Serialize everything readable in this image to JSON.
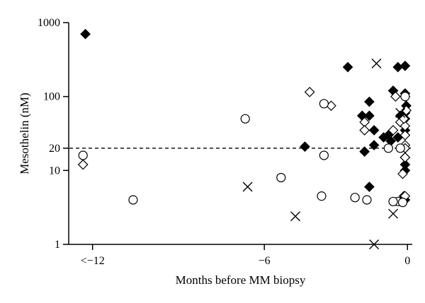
{
  "chart_data": {
    "type": "scatter",
    "title": "",
    "xlabel": "Months before MM biopsy",
    "ylabel": "Mesothelin (nM)",
    "x_scale": "linear",
    "y_scale": "log",
    "xlim": [
      -14.2,
      0.2
    ],
    "ylim": [
      1,
      1000
    ],
    "x_ticks": [
      {
        "value": -13.2,
        "label": "<−12"
      },
      {
        "value": -6,
        "label": "−6"
      },
      {
        "value": 0,
        "label": "0"
      }
    ],
    "y_ticks": [
      {
        "value": 1,
        "label": "1"
      },
      {
        "value": 10,
        "label": "10"
      },
      {
        "value": 20,
        "label": "20"
      },
      {
        "value": 100,
        "label": "100"
      },
      {
        "value": 1000,
        "label": "1000"
      }
    ],
    "reference_line": {
      "y": 20,
      "style": "dashed"
    },
    "grid": false,
    "legend": "none",
    "series": [
      {
        "marker": "filled-diamond",
        "points": [
          [
            -13.5,
            700
          ],
          [
            -2.5,
            250
          ],
          [
            -0.6,
            120
          ],
          [
            -0.4,
            250
          ],
          [
            -0.1,
            260
          ],
          [
            -0.1,
            110
          ],
          [
            -0.1,
            100
          ],
          [
            -0.05,
            75
          ],
          [
            -0.1,
            60
          ],
          [
            -0.1,
            50
          ],
          [
            -0.1,
            35
          ],
          [
            -0.1,
            20
          ],
          [
            -0.1,
            12
          ],
          [
            -0.1,
            10
          ],
          [
            -0.1,
            4
          ],
          [
            -1.6,
            85
          ],
          [
            -1.6,
            55
          ],
          [
            -1.9,
            55
          ],
          [
            -1.4,
            35
          ],
          [
            -1.0,
            28
          ],
          [
            -0.8,
            30
          ],
          [
            -0.7,
            25
          ],
          [
            -0.4,
            28
          ],
          [
            -1.4,
            22
          ],
          [
            -1.8,
            18
          ],
          [
            -0.3,
            55
          ],
          [
            -1.6,
            6
          ],
          [
            -4.3,
            21
          ],
          [
            -0.1,
            15
          ],
          [
            -0.15,
            4.5
          ]
        ]
      },
      {
        "marker": "open-diamond",
        "points": [
          [
            -13.6,
            12
          ],
          [
            -4.1,
            115
          ],
          [
            -3.2,
            75
          ],
          [
            -0.5,
            100
          ],
          [
            -0.3,
            45
          ],
          [
            -0.1,
            40
          ],
          [
            -0.1,
            30
          ],
          [
            -0.1,
            22
          ],
          [
            -0.1,
            20
          ],
          [
            -0.1,
            15
          ],
          [
            -0.2,
            9
          ],
          [
            -0.1,
            4.5
          ],
          [
            -1.8,
            45
          ],
          [
            -1.8,
            35
          ],
          [
            -0.6,
            35
          ],
          [
            -0.15,
            50
          ],
          [
            -0.05,
            65
          ]
        ]
      },
      {
        "marker": "open-circle",
        "points": [
          [
            -13.6,
            16
          ],
          [
            -11.5,
            4
          ],
          [
            -6.8,
            50
          ],
          [
            -5.3,
            8
          ],
          [
            -3.5,
            80
          ],
          [
            -3.5,
            16
          ],
          [
            -3.6,
            4.5
          ],
          [
            -2.2,
            4.3
          ],
          [
            -1.7,
            4
          ],
          [
            -0.8,
            20
          ],
          [
            -0.4,
            3.8
          ],
          [
            -0.6,
            3.8
          ],
          [
            -0.2,
            3.7
          ],
          [
            -0.1,
            100
          ],
          [
            -0.3,
            20
          ]
        ]
      },
      {
        "marker": "cross",
        "points": [
          [
            -1.3,
            280
          ],
          [
            -6.7,
            6
          ],
          [
            -4.7,
            2.4
          ],
          [
            -1.4,
            1
          ],
          [
            -0.6,
            2.6
          ],
          [
            -0.3,
            60
          ]
        ]
      }
    ]
  }
}
